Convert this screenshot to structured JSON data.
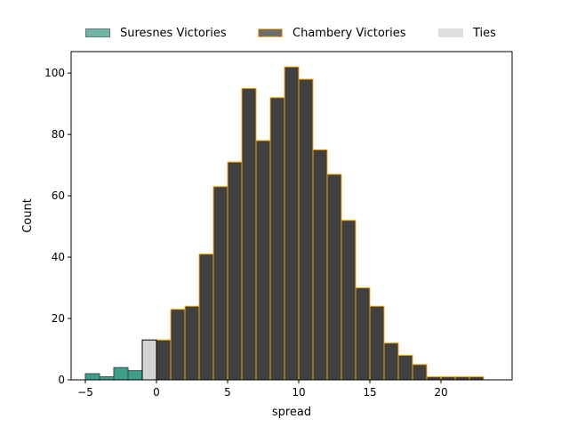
{
  "chart_data": {
    "type": "bar",
    "title": "",
    "xlabel": "spread",
    "ylabel": "Count",
    "xlim": [
      -6,
      25
    ],
    "ylim": [
      0,
      107
    ],
    "xticks": [
      -5,
      0,
      5,
      10,
      15,
      20
    ],
    "yticks": [
      0,
      20,
      40,
      60,
      80,
      100
    ],
    "bin_width": 1,
    "legend_position": "top-center, outside plot area",
    "series": [
      {
        "name": "Suresnes Victories",
        "color": "#3f9e8a",
        "edge_color": "#2f4f4f",
        "bins": [
          {
            "x": -4.5,
            "count": 2
          },
          {
            "x": -3.5,
            "count": 1
          },
          {
            "x": -2.5,
            "count": 4
          },
          {
            "x": -1.5,
            "count": 3
          }
        ]
      },
      {
        "name": "Chambery Victories",
        "color": "#404040",
        "edge_color": "#ffa500",
        "bins": [
          {
            "x": 0.5,
            "count": 13
          },
          {
            "x": 1.5,
            "count": 23
          },
          {
            "x": 2.5,
            "count": 24
          },
          {
            "x": 3.5,
            "count": 41
          },
          {
            "x": 4.5,
            "count": 63
          },
          {
            "x": 5.5,
            "count": 71
          },
          {
            "x": 6.5,
            "count": 95
          },
          {
            "x": 7.5,
            "count": 78
          },
          {
            "x": 8.5,
            "count": 92
          },
          {
            "x": 9.5,
            "count": 102
          },
          {
            "x": 10.5,
            "count": 98
          },
          {
            "x": 11.5,
            "count": 75
          },
          {
            "x": 12.5,
            "count": 67
          },
          {
            "x": 13.5,
            "count": 52
          },
          {
            "x": 14.5,
            "count": 30
          },
          {
            "x": 15.5,
            "count": 24
          },
          {
            "x": 16.5,
            "count": 12
          },
          {
            "x": 17.5,
            "count": 8
          },
          {
            "x": 18.5,
            "count": 5
          },
          {
            "x": 19.5,
            "count": 1
          },
          {
            "x": 20.5,
            "count": 1
          },
          {
            "x": 21.5,
            "count": 1
          },
          {
            "x": 22.5,
            "count": 1
          }
        ]
      },
      {
        "name": "Ties",
        "color": "#d3d3d3",
        "edge_color": "#000000",
        "bins": [
          {
            "x": -0.5,
            "count": 13
          }
        ]
      }
    ]
  }
}
